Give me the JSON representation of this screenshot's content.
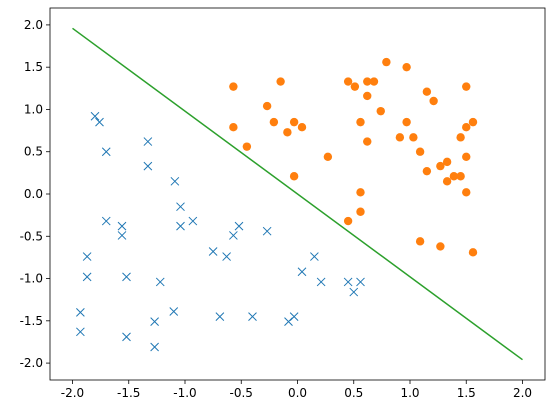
{
  "chart_data": {
    "type": "scatter",
    "title": "",
    "xlabel": "",
    "ylabel": "",
    "xlim": [
      -2.2,
      2.2
    ],
    "ylim": [
      -2.2,
      2.2
    ],
    "grid": false,
    "x_ticks": [
      "-2.0",
      "-1.5",
      "-1.0",
      "-0.5",
      "0.0",
      "0.5",
      "1.0",
      "1.5",
      "2.0"
    ],
    "y_ticks": [
      "-2.0",
      "-1.5",
      "-1.0",
      "-0.5",
      "0.0",
      "0.5",
      "1.0",
      "1.5",
      "2.0"
    ],
    "series": [
      {
        "marker": "x",
        "color": "#1f77b4",
        "points": [
          [
            -1.8,
            0.92
          ],
          [
            -1.76,
            0.85
          ],
          [
            -1.7,
            0.5
          ],
          [
            -1.33,
            0.62
          ],
          [
            -1.33,
            0.33
          ],
          [
            -1.09,
            0.15
          ],
          [
            -1.04,
            -0.15
          ],
          [
            -1.7,
            -0.32
          ],
          [
            -1.56,
            -0.38
          ],
          [
            -1.56,
            -0.49
          ],
          [
            -1.04,
            -0.38
          ],
          [
            -0.93,
            -0.32
          ],
          [
            -0.52,
            -0.38
          ],
          [
            -0.57,
            -0.49
          ],
          [
            -0.27,
            -0.44
          ],
          [
            -1.87,
            -0.74
          ],
          [
            -1.87,
            -0.98
          ],
          [
            -1.52,
            -0.98
          ],
          [
            -1.22,
            -1.04
          ],
          [
            -0.75,
            -0.68
          ],
          [
            -0.63,
            -0.74
          ],
          [
            0.15,
            -0.74
          ],
          [
            0.04,
            -0.92
          ],
          [
            0.21,
            -1.04
          ],
          [
            0.45,
            -1.04
          ],
          [
            0.56,
            -1.04
          ],
          [
            0.5,
            -1.16
          ],
          [
            -1.93,
            -1.4
          ],
          [
            -1.93,
            -1.63
          ],
          [
            -1.52,
            -1.69
          ],
          [
            -1.27,
            -1.51
          ],
          [
            -1.27,
            -1.81
          ],
          [
            -1.1,
            -1.39
          ],
          [
            -0.69,
            -1.45
          ],
          [
            -0.4,
            -1.45
          ],
          [
            -0.03,
            -1.45
          ],
          [
            -0.08,
            -1.51
          ]
        ]
      },
      {
        "marker": "o",
        "color": "#ff7f0e",
        "points": [
          [
            -0.57,
            1.27
          ],
          [
            -0.57,
            0.79
          ],
          [
            -0.45,
            0.56
          ],
          [
            -0.27,
            1.04
          ],
          [
            -0.15,
            1.33
          ],
          [
            -0.21,
            0.85
          ],
          [
            -0.09,
            0.73
          ],
          [
            -0.03,
            0.85
          ],
          [
            0.04,
            0.79
          ],
          [
            -0.03,
            0.21
          ],
          [
            0.27,
            0.44
          ],
          [
            0.45,
            1.33
          ],
          [
            0.51,
            1.27
          ],
          [
            0.62,
            1.33
          ],
          [
            0.62,
            1.16
          ],
          [
            0.68,
            1.33
          ],
          [
            0.56,
            0.85
          ],
          [
            0.62,
            0.62
          ],
          [
            0.74,
            0.98
          ],
          [
            0.79,
            1.56
          ],
          [
            0.91,
            0.67
          ],
          [
            0.97,
            0.85
          ],
          [
            0.97,
            1.5
          ],
          [
            1.03,
            0.67
          ],
          [
            1.09,
            0.5
          ],
          [
            1.15,
            1.21
          ],
          [
            1.21,
            1.1
          ],
          [
            1.15,
            0.27
          ],
          [
            1.27,
            0.33
          ],
          [
            1.33,
            0.38
          ],
          [
            1.33,
            0.15
          ],
          [
            1.39,
            0.21
          ],
          [
            1.45,
            0.21
          ],
          [
            1.45,
            0.67
          ],
          [
            1.5,
            0.79
          ],
          [
            1.5,
            1.27
          ],
          [
            1.5,
            0.44
          ],
          [
            1.5,
            0.02
          ],
          [
            1.56,
            0.85
          ],
          [
            0.56,
            0.02
          ],
          [
            0.56,
            -0.21
          ],
          [
            0.45,
            -0.32
          ],
          [
            1.09,
            -0.56
          ],
          [
            1.27,
            -0.62
          ],
          [
            1.56,
            -0.69
          ]
        ]
      },
      {
        "marker": "line",
        "color": "#2ca02c",
        "points": [
          [
            -2.0,
            1.96
          ],
          [
            2.0,
            -1.96
          ]
        ]
      }
    ]
  }
}
